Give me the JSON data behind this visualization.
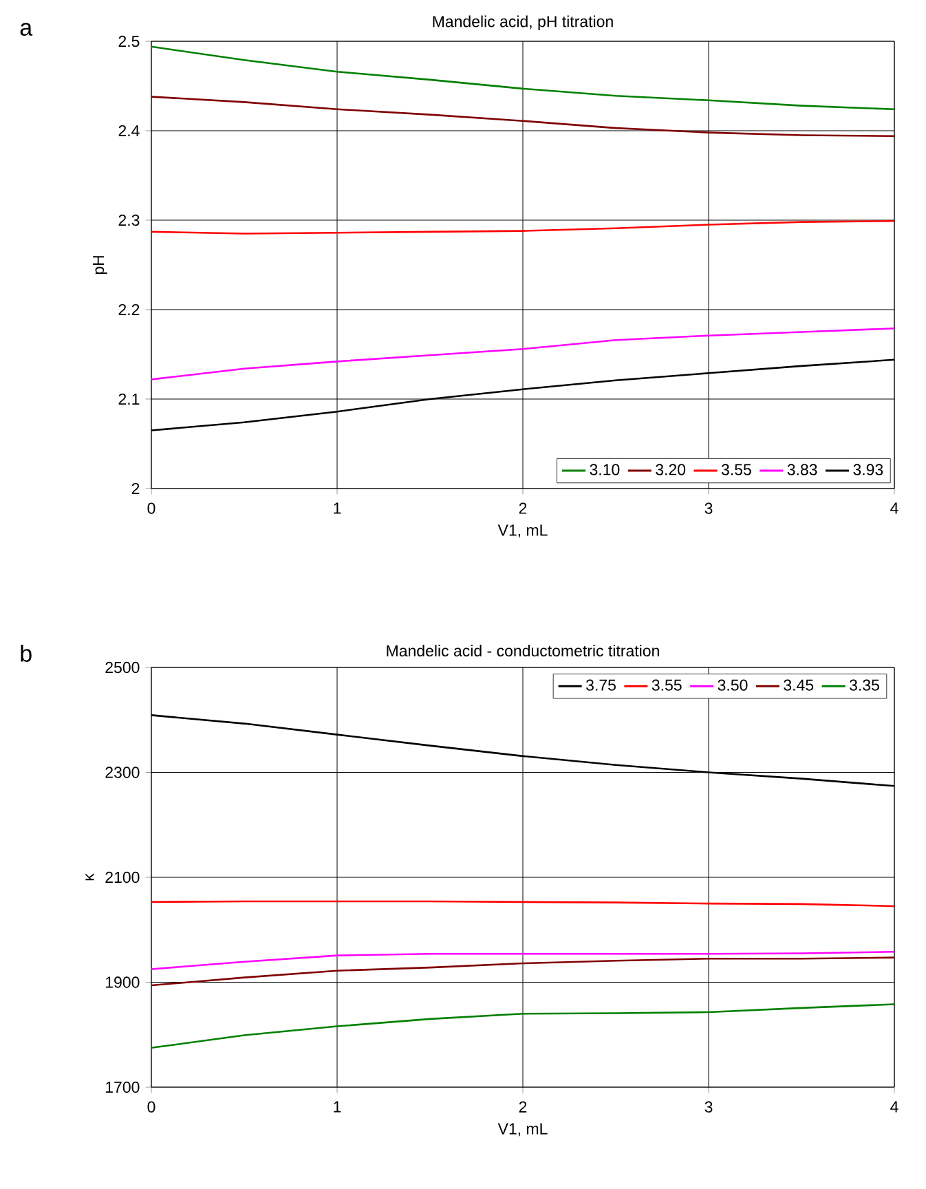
{
  "chart_data": [
    {
      "type": "line",
      "title": "Mandelic acid, pH titration",
      "xlabel": "V1, mL",
      "ylabel": "pH",
      "annotations": [
        "a"
      ],
      "x": [
        0,
        0.5,
        1,
        1.5,
        2,
        2.5,
        3,
        3.5,
        4
      ],
      "series": [
        {
          "name": "3.10",
          "color": "#008000",
          "values": [
            2.494,
            2.479,
            2.466,
            2.457,
            2.447,
            2.439,
            2.434,
            2.428,
            2.424
          ]
        },
        {
          "name": "3.20",
          "color": "#800000",
          "values": [
            2.438,
            2.432,
            2.424,
            2.418,
            2.411,
            2.403,
            2.398,
            2.395,
            2.394
          ]
        },
        {
          "name": "3.55",
          "color": "#ff0000",
          "values": [
            2.287,
            2.285,
            2.286,
            2.287,
            2.288,
            2.291,
            2.295,
            2.298,
            2.299
          ]
        },
        {
          "name": "3.83",
          "color": "#ff00ff",
          "values": [
            2.122,
            2.134,
            2.142,
            2.149,
            2.156,
            2.166,
            2.171,
            2.175,
            2.179
          ]
        },
        {
          "name": "3.93",
          "color": "#000000",
          "values": [
            2.065,
            2.074,
            2.086,
            2.1,
            2.111,
            2.121,
            2.129,
            2.137,
            2.144
          ]
        }
      ],
      "xlim": [
        0,
        4
      ],
      "xticks": [
        0,
        1,
        2,
        3,
        4
      ],
      "ylim": [
        2,
        2.5
      ],
      "yticks": [
        2,
        2.1,
        2.2,
        2.3,
        2.4,
        2.5
      ],
      "grid": true,
      "legend": "bottom right",
      "marker": "none",
      "line_style": "solid"
    },
    {
      "type": "line",
      "title": "Mandelic acid - conductometric titration",
      "xlabel": "V1, mL",
      "ylabel": "κ",
      "annotations": [
        "b"
      ],
      "x": [
        0,
        0.5,
        1,
        1.5,
        2,
        2.5,
        3,
        3.5,
        4
      ],
      "series": [
        {
          "name": "3.75",
          "color": "#000000",
          "values": [
            2409,
            2393,
            2372,
            2351,
            2331,
            2314,
            2300,
            2288,
            2274
          ]
        },
        {
          "name": "3.55",
          "color": "#ff0000",
          "values": [
            2053,
            2054,
            2054,
            2054,
            2053,
            2052,
            2050,
            2049,
            2045
          ]
        },
        {
          "name": "3.50",
          "color": "#ff00ff",
          "values": [
            1925,
            1939,
            1951,
            1954,
            1954,
            1954,
            1954,
            1955,
            1958
          ]
        },
        {
          "name": "3.45",
          "color": "#800000",
          "values": [
            1894,
            1909,
            1922,
            1928,
            1936,
            1941,
            1945,
            1945,
            1947
          ]
        },
        {
          "name": "3.35",
          "color": "#008000",
          "values": [
            1775,
            1799,
            1816,
            1830,
            1840,
            1841,
            1843,
            1851,
            1858
          ]
        }
      ],
      "xlim": [
        0,
        4
      ],
      "xticks": [
        0,
        1,
        2,
        3,
        4
      ],
      "ylim": [
        1700,
        2500
      ],
      "yticks": [
        1700,
        1900,
        2100,
        2300,
        2500
      ],
      "grid": true,
      "legend": "top right",
      "marker": "none",
      "line_style": "solid"
    }
  ]
}
